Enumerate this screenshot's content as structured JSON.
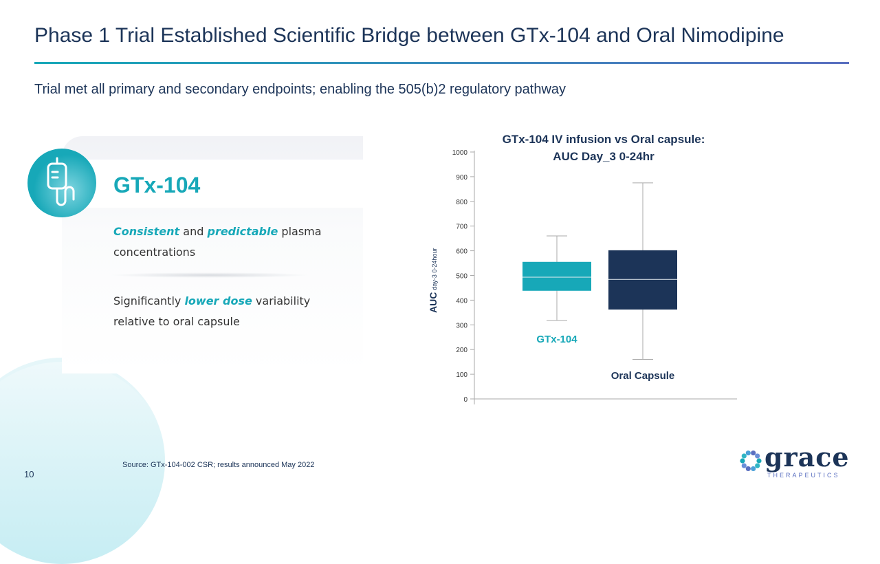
{
  "header": {
    "title": "Phase 1 Trial Established Scientific Bridge between GTx-104 and Oral Nimodipine",
    "subtitle": "Trial met all primary and secondary endpoints; enabling the 505(b)2 regulatory pathway"
  },
  "card": {
    "name": "GTx-104",
    "icon": "iv-bag-icon",
    "bullet1": {
      "em1": "Consistent",
      "t1": " and ",
      "em2": "predictable",
      "t2": " plasma concentrations"
    },
    "bullet2": {
      "t1": "Significantly ",
      "em1": "lower dose",
      "t2": " variability relative to oral capsule"
    }
  },
  "footer": {
    "source": "Source: GTx-104-002 CSR; results announced May 2022",
    "page": "10",
    "logo": "grace",
    "logo_sub": "THERAPEUTICS"
  },
  "colors": {
    "teal": "#17a8b8",
    "navy": "#1c3458"
  },
  "chart_data": {
    "type": "boxplot",
    "title": [
      "GTx-104 IV infusion vs Oral capsule:",
      "AUC Day_3 0-24hr"
    ],
    "ylabel": "AUC",
    "ylabel_sub": "day-3 0-24hour",
    "ylim": [
      0,
      1000
    ],
    "yticks": [
      0,
      100,
      200,
      300,
      400,
      500,
      600,
      700,
      800,
      900,
      1000
    ],
    "series": [
      {
        "name": "GTx-104",
        "color": "#17a8b8",
        "min": 318,
        "q1": 438,
        "median": 493,
        "q3": 555,
        "max": 660
      },
      {
        "name": "Oral Capsule",
        "color": "#1c3458",
        "min": 160,
        "q1": 362,
        "median": 484,
        "q3": 602,
        "max": 875
      }
    ]
  }
}
